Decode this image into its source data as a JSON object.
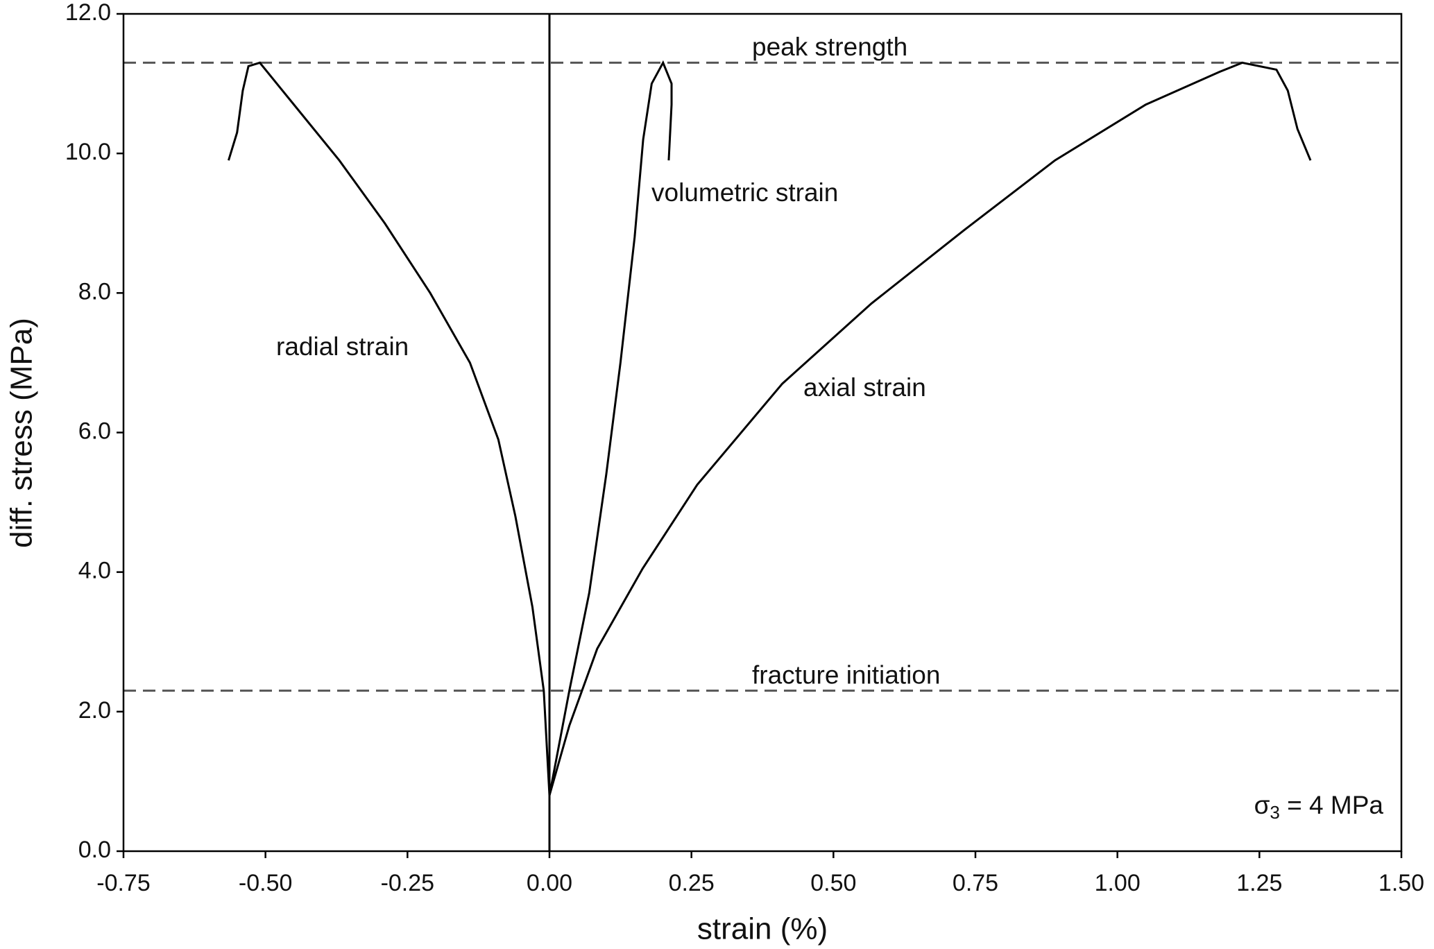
{
  "chart_data": {
    "type": "line",
    "xlabel": "strain (%)",
    "ylabel": "diff. stress (MPa)",
    "xlim": [
      -0.75,
      1.5
    ],
    "ylim": [
      0,
      12
    ],
    "xticks": [
      {
        "value": -0.75,
        "label": "-0.75"
      },
      {
        "value": -0.5,
        "label": "-0.50"
      },
      {
        "value": -0.25,
        "label": "-0.25"
      },
      {
        "value": 0,
        "label": "0.00"
      },
      {
        "value": 0.25,
        "label": "0.25"
      },
      {
        "value": 0.5,
        "label": "0.50"
      },
      {
        "value": 0.75,
        "label": "0.75"
      },
      {
        "value": 1,
        "label": "1.00"
      },
      {
        "value": 1.25,
        "label": "1.25"
      },
      {
        "value": 1.5,
        "label": "1.50"
      }
    ],
    "yticks": [
      {
        "value": 0,
        "label": "0.0"
      },
      {
        "value": 2,
        "label": "2.0"
      },
      {
        "value": 4,
        "label": "4.0"
      },
      {
        "value": 6,
        "label": "6.0"
      },
      {
        "value": 8,
        "label": "8.0"
      },
      {
        "value": 10,
        "label": "10.0"
      },
      {
        "value": 12,
        "label": "12.0"
      }
    ],
    "series": [
      {
        "name": "radial strain",
        "color": "#000000",
        "x": [
          0,
          -0.01,
          -0.03,
          -0.06,
          -0.09,
          -0.14,
          -0.21,
          -0.29,
          -0.37,
          -0.45,
          -0.51,
          -0.53,
          -0.54,
          -0.55,
          -0.565
        ],
        "values": [
          0.8,
          2.3,
          3.5,
          4.8,
          5.9,
          7.0,
          8.0,
          9.0,
          9.9,
          10.7,
          11.3,
          11.25,
          10.9,
          10.3,
          9.9
        ]
      },
      {
        "name": "volumetric strain",
        "color": "#000000",
        "x": [
          0,
          0.035,
          0.07,
          0.1,
          0.125,
          0.15,
          0.165,
          0.18,
          0.2,
          0.215,
          0.215,
          0.21
        ],
        "values": [
          0.8,
          2.3,
          3.7,
          5.4,
          7.0,
          8.8,
          10.2,
          11.0,
          11.3,
          11.0,
          10.7,
          9.9
        ]
      },
      {
        "name": "axial strain",
        "color": "#000000",
        "x": [
          0,
          0.035,
          0.084,
          0.164,
          0.26,
          0.41,
          0.567,
          0.73,
          0.89,
          1.05,
          1.18,
          1.22,
          1.28,
          1.3,
          1.317,
          1.34
        ],
        "values": [
          0.8,
          1.8,
          2.9,
          4.05,
          5.25,
          6.7,
          7.85,
          8.9,
          9.9,
          10.7,
          11.17,
          11.3,
          11.2,
          10.9,
          10.35,
          9.9
        ]
      }
    ],
    "reference_lines": [
      {
        "label": "peak strength",
        "value": 11.3,
        "color": "#555555"
      },
      {
        "label": "fracture initiation",
        "value": 2.3,
        "color": "#555555"
      }
    ],
    "annotation": {
      "symbol": "σ",
      "subscript": "3",
      "text": " = 4 MPa"
    }
  }
}
